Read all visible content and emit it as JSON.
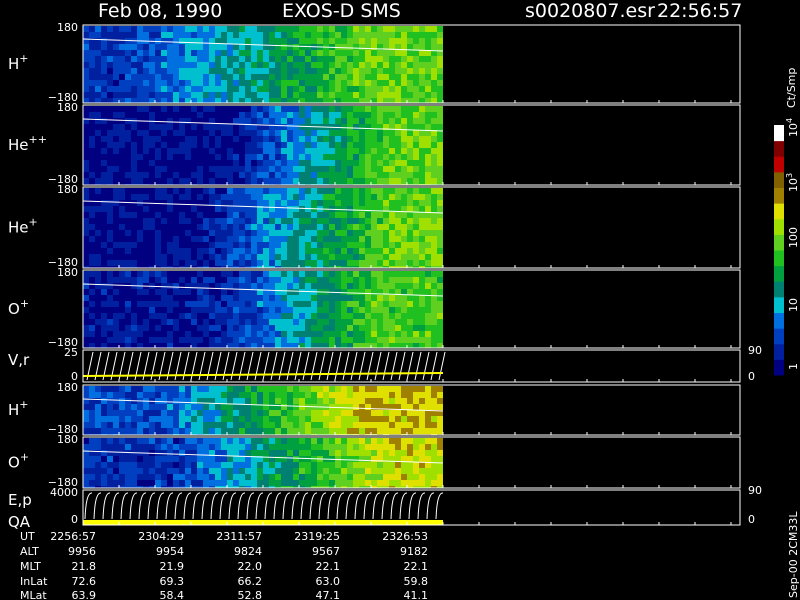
{
  "header": {
    "date": "Feb 08, 1990",
    "instrument": "EXOS-D SMS",
    "file": "s0020807.esr",
    "time": "22:56:57"
  },
  "panels": [
    {
      "species": "H",
      "charge": "+",
      "top": "180",
      "bottom": "−180"
    },
    {
      "species": "He",
      "charge": "++",
      "top": "180",
      "bottom": "−180"
    },
    {
      "species": "He",
      "charge": "+",
      "top": "180",
      "bottom": "−180"
    },
    {
      "species": "O",
      "charge": "+",
      "top": "180",
      "bottom": "−180"
    },
    {
      "label": "V,r",
      "top": "25",
      "bottom": "0",
      "right_top": "90",
      "right_bottom": "0"
    },
    {
      "species": "H",
      "charge": "+",
      "top": "180",
      "bottom": "−180"
    },
    {
      "species": "O",
      "charge": "+",
      "top": "180",
      "bottom": "−180"
    },
    {
      "label": "E,p",
      "label2": "QA",
      "top": "4000",
      "bottom": "0",
      "right_top": "90",
      "right_bottom": "0"
    }
  ],
  "colorbar": {
    "unit": "Ct/Smp",
    "labels": [
      {
        "base": "10",
        "exp": "4"
      },
      {
        "base": "10",
        "exp": "3"
      },
      {
        "base": "100"
      },
      {
        "base": "10"
      },
      {
        "base": "1"
      }
    ]
  },
  "footer": {
    "rows": [
      {
        "name": "UT",
        "values": [
          "2256:57",
          "2304:29",
          "2311:57",
          "2319:25",
          "2326:53"
        ]
      },
      {
        "name": "ALT",
        "values": [
          "9956",
          "9954",
          "9824",
          "9567",
          "9182"
        ]
      },
      {
        "name": "MLT",
        "values": [
          "21.8",
          "21.9",
          "22.0",
          "22.1",
          "22.1"
        ]
      },
      {
        "name": "InLat",
        "values": [
          "72.6",
          "69.3",
          "66.2",
          "63.0",
          "59.8"
        ]
      },
      {
        "name": "MLat",
        "values": [
          "63.9",
          "58.4",
          "52.8",
          "47.1",
          "41.1"
        ]
      }
    ]
  },
  "stamp": "Sep-00 2CM33L"
}
